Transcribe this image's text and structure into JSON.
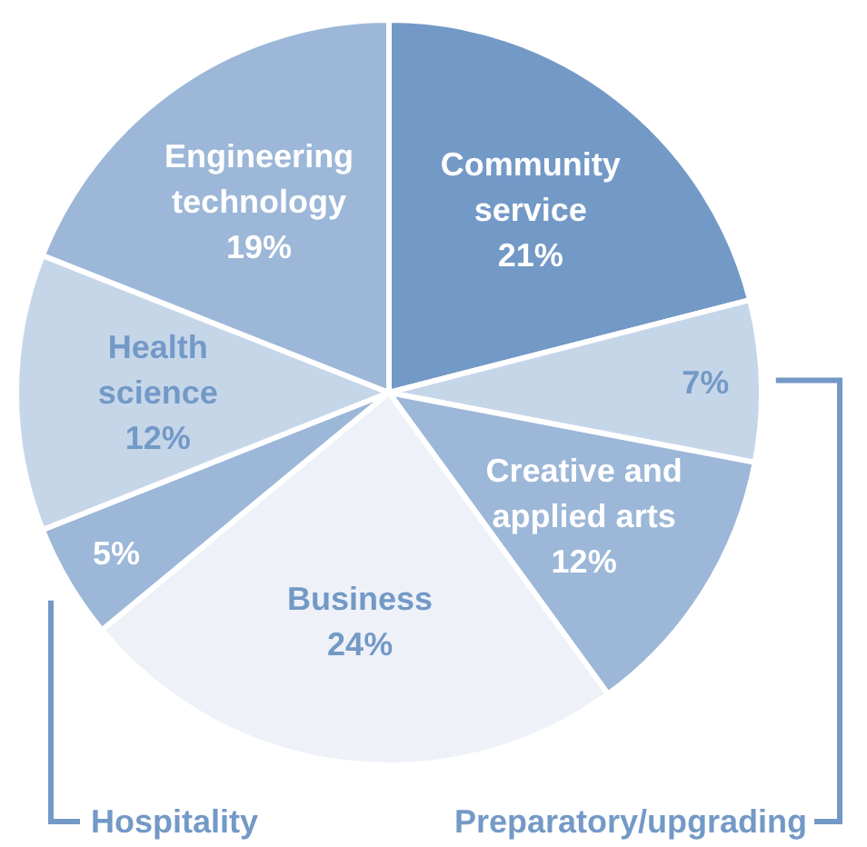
{
  "chart_data": {
    "type": "pie",
    "categories": [
      "Community service",
      "Preparatory/upgrading",
      "Creative and applied arts",
      "Business",
      "Hospitality",
      "Health science",
      "Engineering technology"
    ],
    "values": [
      21,
      7,
      12,
      24,
      5,
      12,
      19
    ],
    "value_labels": [
      "21%",
      "7%",
      "12%",
      "24%",
      "5%",
      "12%",
      "19%"
    ],
    "colors": [
      "#7399c6",
      "#c6d6e9",
      "#9cb7d8",
      "#eef2f8",
      "#9cb7d8",
      "#c6d6e9",
      "#9cb7d8"
    ]
  }
}
